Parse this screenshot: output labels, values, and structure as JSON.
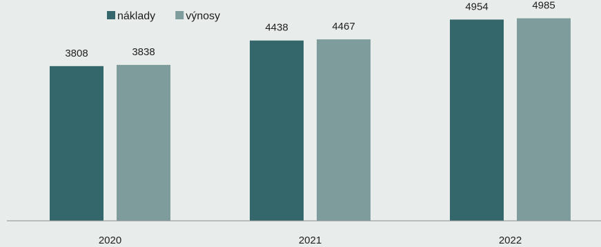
{
  "chart_data": {
    "type": "bar",
    "title": "",
    "xlabel": "",
    "ylabel": "",
    "categories": [
      "2020",
      "2021",
      "2022"
    ],
    "series": [
      {
        "name": "náklady",
        "values": [
          3808,
          4438,
          4954
        ],
        "color": "#34676b"
      },
      {
        "name": "výnosy",
        "values": [
          3838,
          4467,
          4985
        ],
        "color": "#7f9c9d"
      }
    ],
    "ylim": [
      0,
      5300
    ],
    "grid": false,
    "legend_position": "top-left",
    "data_labels": true
  }
}
